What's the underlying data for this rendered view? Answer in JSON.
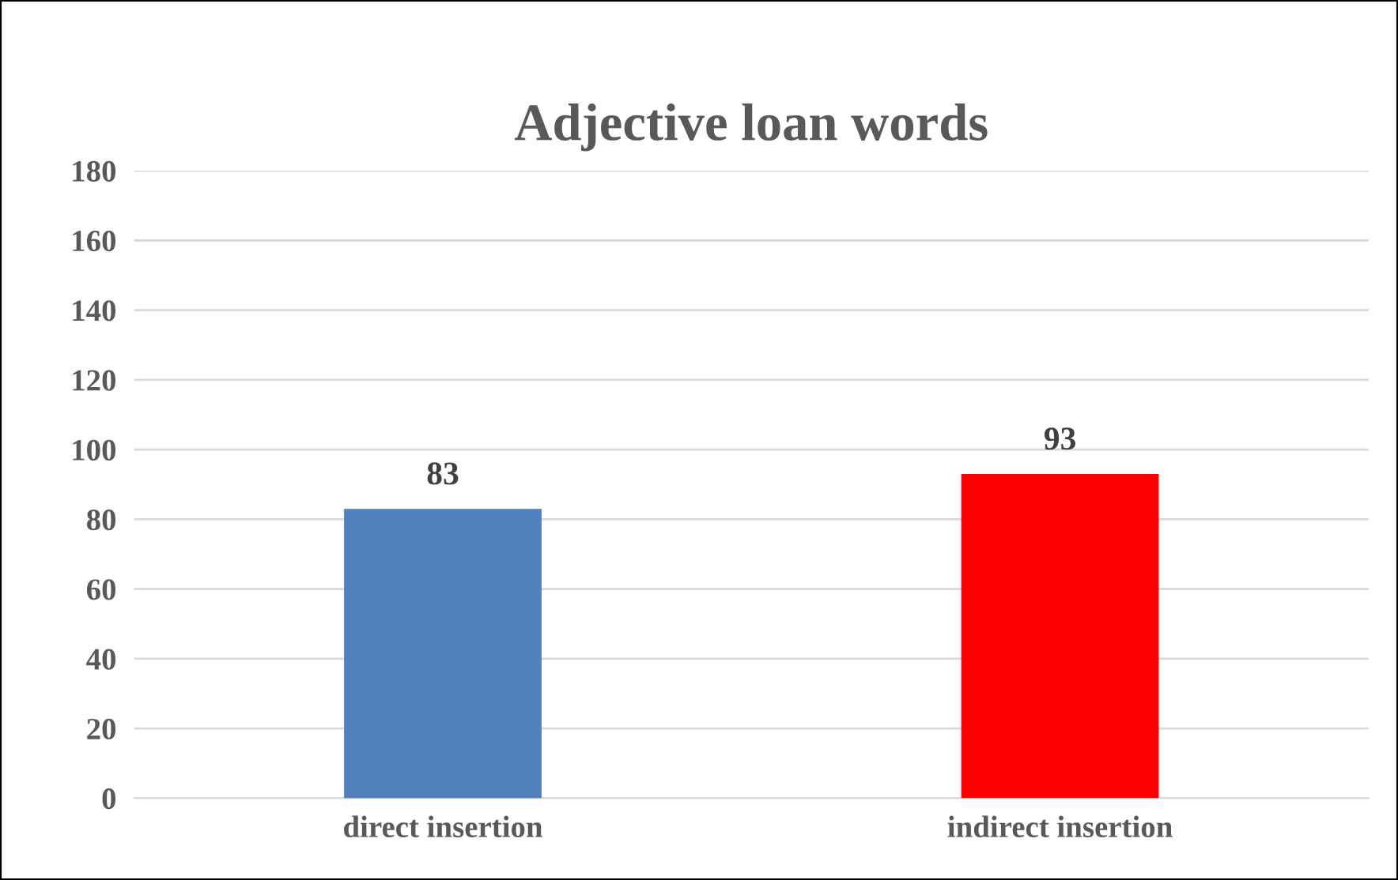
{
  "chart_data": {
    "type": "bar",
    "title": "Adjective loan words",
    "categories": [
      "direct insertion",
      "indirect insertion"
    ],
    "values": [
      83,
      93
    ],
    "colors": [
      "#4f81bd",
      "#ff0000"
    ],
    "ylim": [
      0,
      180
    ],
    "yticks": [
      0,
      20,
      40,
      60,
      80,
      100,
      120,
      140,
      160,
      180
    ],
    "grid": "y",
    "data_labels": true
  }
}
